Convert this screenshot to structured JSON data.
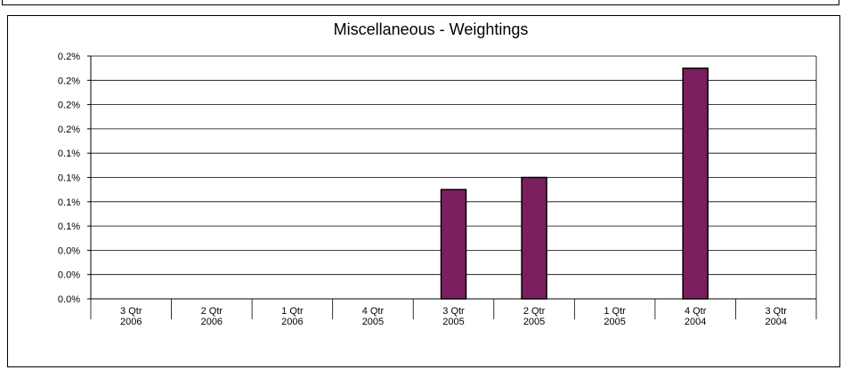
{
  "chart_data": {
    "type": "bar",
    "title": "Miscellaneous  -  Weightings",
    "xlabel": "",
    "ylabel": "",
    "categories": [
      [
        "3 Qtr",
        "2006"
      ],
      [
        "2 Qtr",
        "2006"
      ],
      [
        "1 Qtr",
        "2006"
      ],
      [
        "4 Qtr",
        "2005"
      ],
      [
        "3 Qtr",
        "2005"
      ],
      [
        "2 Qtr",
        "2005"
      ],
      [
        "1 Qtr",
        "2005"
      ],
      [
        "4 Qtr",
        "2004"
      ],
      [
        "3 Qtr",
        "2004"
      ]
    ],
    "values": [
      0,
      0,
      0,
      0,
      0.09,
      0.1,
      0,
      0.19,
      0
    ],
    "y_tick_labels": [
      "0.0%",
      "0.0%",
      "0.0%",
      "0.1%",
      "0.1%",
      "0.1%",
      "0.1%",
      "0.2%",
      "0.2%",
      "0.2%",
      "0.2%"
    ],
    "ylim": [
      0,
      0.2
    ],
    "y_unit": "%",
    "grid": true,
    "legend": "none",
    "bar_color": "#7b1f5e"
  }
}
